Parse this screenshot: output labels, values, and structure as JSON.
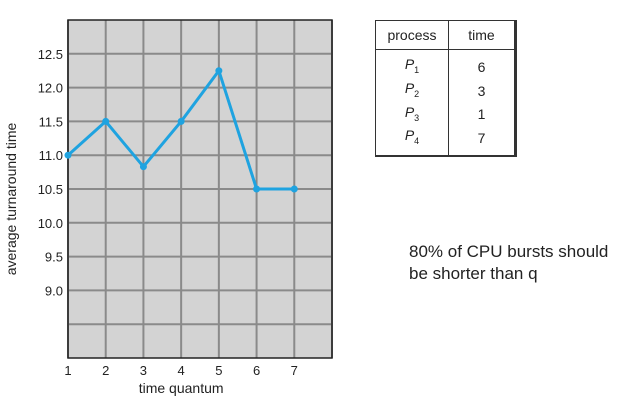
{
  "chart_data": {
    "type": "line",
    "title": "",
    "xlabel": "time quantum",
    "ylabel": "average turnaround time",
    "x": [
      1,
      2,
      3,
      4,
      5,
      6,
      7
    ],
    "xticks": [
      "1",
      "2",
      "3",
      "4",
      "5",
      "6",
      "7"
    ],
    "xlim": [
      1,
      8
    ],
    "yticks": [
      "9.0",
      "9.5",
      "10.0",
      "10.5",
      "11.0",
      "11.5",
      "12.0",
      "12.5"
    ],
    "ylim": [
      8.0,
      13.0
    ],
    "grid": true,
    "series": [
      {
        "values": [
          11.0,
          11.5,
          10.83,
          11.5,
          12.25,
          10.5,
          10.5
        ]
      }
    ],
    "colors": {
      "line": "#1fa3e0",
      "plot_background": "#d3d3d3",
      "grid": "#8a8a8a",
      "frame": "#222222"
    }
  },
  "table": {
    "headers": [
      "process",
      "time"
    ],
    "rows": [
      {
        "process": "P",
        "sub": "1",
        "time": "6"
      },
      {
        "process": "P",
        "sub": "2",
        "time": "3"
      },
      {
        "process": "P",
        "sub": "3",
        "time": "1"
      },
      {
        "process": "P",
        "sub": "4",
        "time": "7"
      }
    ]
  },
  "note": {
    "line1": "80% of CPU bursts should",
    "line2": "be shorter than q"
  }
}
